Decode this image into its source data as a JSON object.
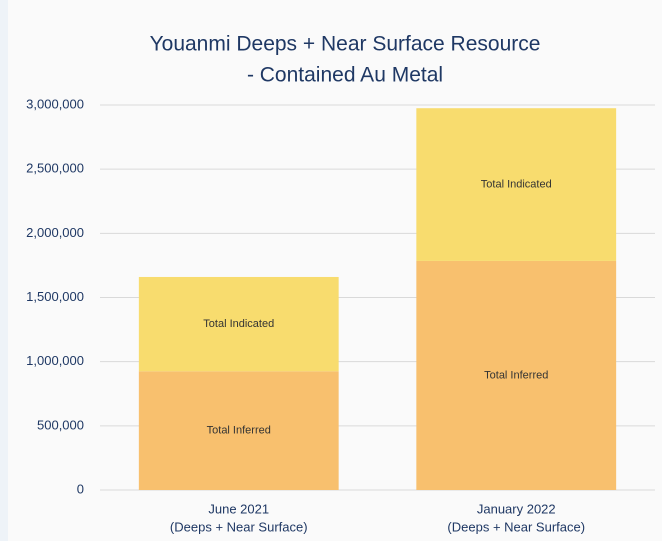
{
  "chart_data": {
    "type": "stacked_bar",
    "title": [
      "Youanmi Deeps + Near Surface Resource",
      "- Contained Au Metal"
    ],
    "categories": [
      [
        "June 2021",
        "(Deeps + Near Surface)"
      ],
      [
        "January 2022",
        "(Deeps + Near Surface)"
      ]
    ],
    "series": [
      {
        "name": "Total Inferred",
        "color": "#f8c06e",
        "values": [
          925000,
          1785000
        ]
      },
      {
        "name": "Total Indicated",
        "color": "#f8dc6e",
        "values": [
          735000,
          1190000
        ]
      }
    ],
    "ylim": [
      0,
      3000000
    ],
    "yticks": [
      0,
      {
        "value": 500000,
        "label": "500,000"
      },
      {
        "value": 1000000,
        "label": "1,000,000"
      },
      {
        "value": 1500000,
        "label": "1,500,000"
      },
      {
        "value": 2000000,
        "label": "2,000,000"
      },
      {
        "value": 2500000,
        "label": "2,500,000"
      },
      {
        "value": 3000000,
        "label": "3,000,000"
      }
    ],
    "grid": true
  }
}
